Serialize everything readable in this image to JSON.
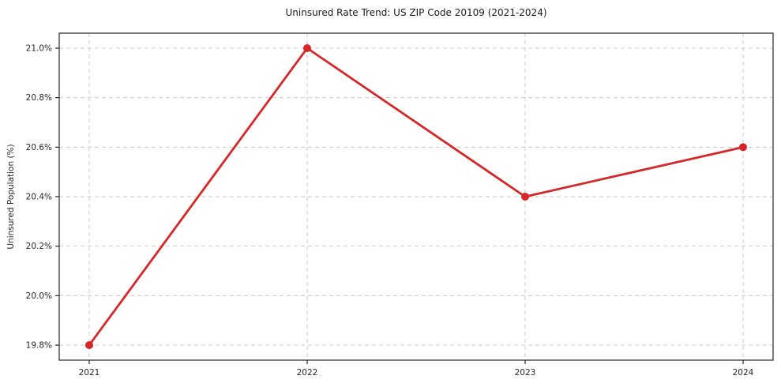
{
  "page": {
    "background": "#ffffff"
  },
  "chart_data": {
    "type": "line",
    "title": "Uninsured Rate Trend: US ZIP Code 20109 (2021-2024)",
    "xlabel": "",
    "ylabel": "Uninsured Population (%)",
    "x": [
      2021,
      2022,
      2023,
      2024
    ],
    "xtick_labels": [
      "2021",
      "2022",
      "2023",
      "2024"
    ],
    "series": [
      {
        "name": "uninsured-rate",
        "values": [
          19.8,
          21.0,
          20.4,
          20.6
        ]
      }
    ],
    "ylim": [
      19.8,
      21.0
    ],
    "yticks": [
      19.8,
      20.0,
      20.2,
      20.4,
      20.6,
      20.8,
      21.0
    ],
    "ytick_labels": [
      "19.8%",
      "20.0%",
      "20.2%",
      "20.4%",
      "20.6%",
      "20.8%",
      "21.0%"
    ],
    "grid": true,
    "grid_style": "dashed",
    "grid_color": "#c9c9c9",
    "line_color": "#d62728",
    "marker": "circle",
    "spine_color": "#262626",
    "legend_position": "none"
  }
}
